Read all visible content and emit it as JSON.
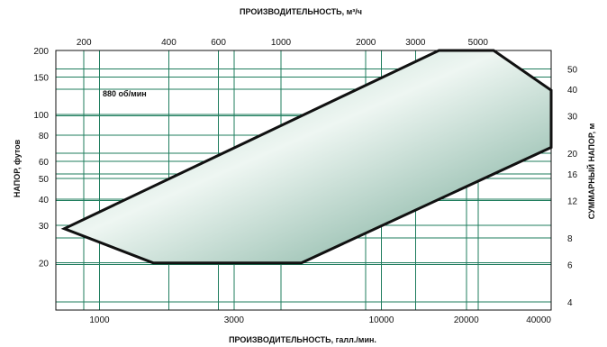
{
  "chart_data": {
    "type": "area",
    "annotation": "880 об/мин",
    "x_bottom": {
      "label": "ПРОИЗВОДИТЕЛЬНОСТЬ, галл./мин.",
      "scale": "log",
      "range": [
        700,
        40000
      ],
      "ticks": [
        1000,
        3000,
        10000,
        20000,
        40000
      ],
      "tick_labels": [
        "1000",
        "3000",
        "10000",
        "20000",
        "40000"
      ]
    },
    "x_top": {
      "label": "ПРОИЗВОДИТЕЛЬНОСТЬ, м³/ч",
      "scale": "log",
      "ticks": [
        200,
        400,
        600,
        1000,
        2000,
        3000,
        5000
      ],
      "tick_labels": [
        "200",
        "400",
        "600",
        "1000",
        "2000",
        "3000",
        "5000"
      ]
    },
    "y_left": {
      "label": "НАПОР, футов",
      "scale": "log",
      "range": [
        12,
        200
      ],
      "ticks": [
        20,
        30,
        40,
        50,
        60,
        80,
        100,
        150,
        200
      ],
      "tick_labels": [
        "20",
        "30",
        "40",
        "50",
        "60",
        "80",
        "100",
        "150",
        "200"
      ]
    },
    "y_right": {
      "label": "СУММАРНЫЙ НАПОР, м",
      "scale": "log",
      "ticks": [
        4,
        6,
        8,
        12,
        16,
        20,
        30,
        40,
        50
      ],
      "tick_labels": [
        "4",
        "6",
        "8",
        "12",
        "16",
        "20",
        "30",
        "40",
        "50"
      ]
    },
    "grid": true,
    "series": [
      {
        "points": [
          {
            "x": 750,
            "y": 29
          },
          {
            "x": 1550,
            "y": 20
          },
          {
            "x": 5200,
            "y": 20
          },
          {
            "x": 40000,
            "y": 70
          },
          {
            "x": 40000,
            "y": 130
          },
          {
            "x": 25000,
            "y": 200
          },
          {
            "x": 16000,
            "y": 200
          }
        ]
      }
    ],
    "colors": {
      "fill_light": "#eef6f2",
      "fill_dark": "#6aa28e",
      "grid": "#1f7d5e",
      "outline": "#111111"
    }
  }
}
